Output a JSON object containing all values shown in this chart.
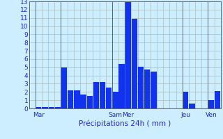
{
  "xlabel": "Précipitations 24h ( mm )",
  "background_color": "#cceeff",
  "bar_color": "#1133ee",
  "grid_color": "#aabbbb",
  "ylim": [
    0,
    13
  ],
  "yticks": [
    0,
    1,
    2,
    3,
    4,
    5,
    6,
    7,
    8,
    9,
    10,
    11,
    12,
    13
  ],
  "values": [
    0.0,
    0.2,
    0.2,
    0.2,
    0.2,
    5.0,
    2.2,
    2.2,
    1.7,
    1.5,
    3.2,
    3.2,
    2.5,
    2.0,
    5.4,
    13.0,
    10.9,
    5.1,
    4.7,
    4.5,
    0.0,
    0.0,
    0.0,
    0.0,
    2.0,
    0.6,
    0.0,
    0.0,
    1.0,
    2.1
  ],
  "n_bars": 30,
  "tick_label_fontsize": 6.5,
  "axis_label_fontsize": 7.5,
  "text_color": "#2222cc",
  "day_labels": [
    "Mar",
    "Sam",
    "Mer",
    "Jeu",
    "Ven"
  ],
  "day_tick_pos": [
    1,
    13,
    15,
    24,
    28
  ],
  "vert_line_pos": [
    0.5,
    4.5,
    12.5,
    14.5,
    23.5,
    27.5
  ]
}
